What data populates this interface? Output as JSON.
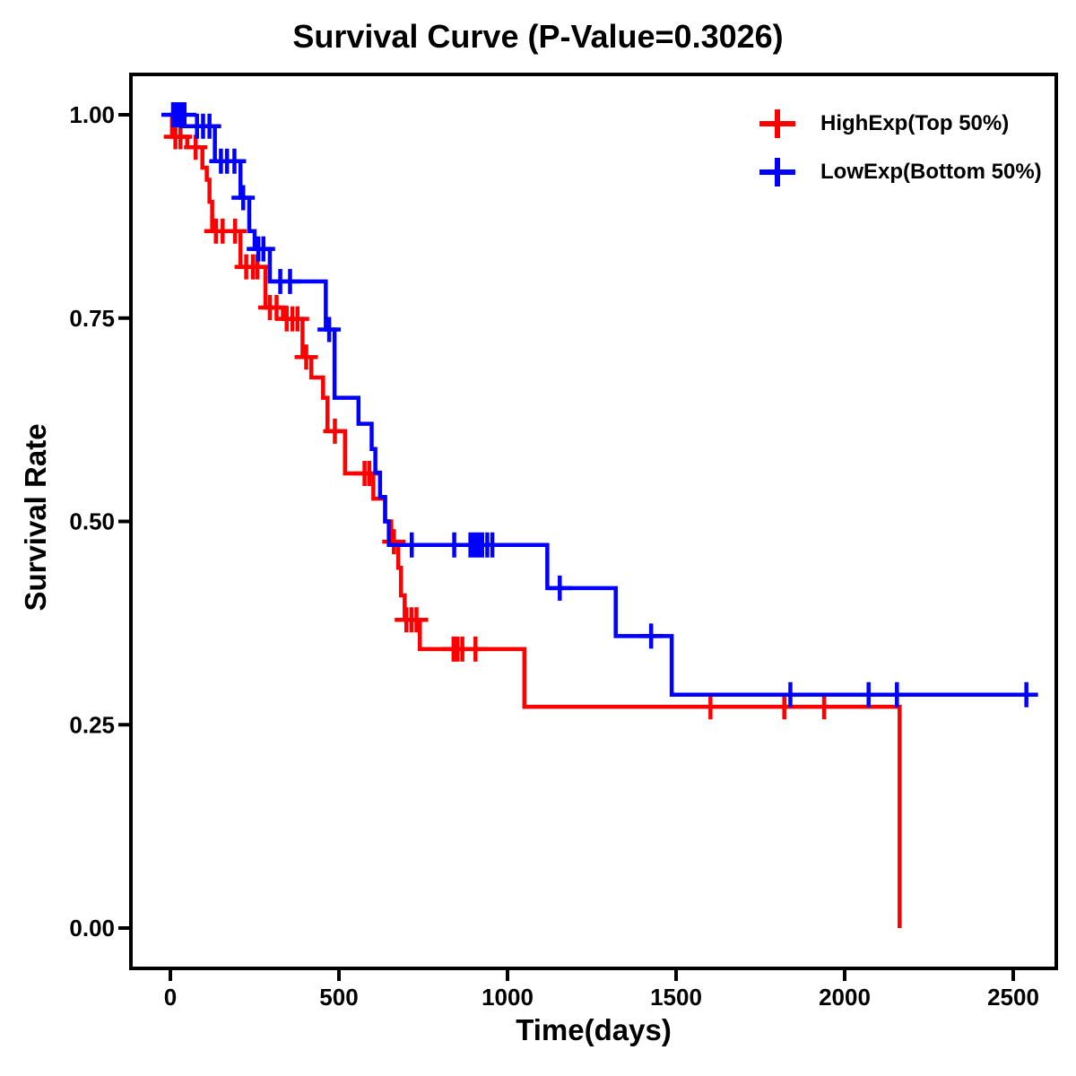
{
  "chart_data": {
    "type": "line",
    "subtype": "kaplan-meier-survival",
    "title": "Survival Curve (P-Value=0.3026)",
    "p_value": 0.3026,
    "xlabel": "Time(days)",
    "ylabel": "Survival Rate",
    "xlim": [
      -130,
      2630
    ],
    "ylim": [
      -0.05,
      1.05
    ],
    "xticks": [
      0,
      500,
      1000,
      1500,
      2000,
      2500
    ],
    "yticks": [
      0,
      0.25,
      0.5,
      0.75,
      1.0
    ],
    "ytick_labels": [
      "0.00",
      "0.25",
      "0.50",
      "0.75",
      "1.00"
    ],
    "grid": false,
    "legend_position": "top-right",
    "axis_color": "#000000",
    "censor_marker": "plus",
    "series": [
      {
        "name": "HighExp(Top 50%)",
        "color": "#FF0000",
        "end_time": 2163,
        "steps": [
          [
            0,
            1.0
          ],
          [
            5,
            0.973
          ],
          [
            50,
            0.96
          ],
          [
            95,
            0.935
          ],
          [
            108,
            0.92
          ],
          [
            116,
            0.893
          ],
          [
            124,
            0.857
          ],
          [
            208,
            0.813
          ],
          [
            282,
            0.763
          ],
          [
            334,
            0.749
          ],
          [
            392,
            0.702
          ],
          [
            418,
            0.677
          ],
          [
            453,
            0.652
          ],
          [
            466,
            0.611
          ],
          [
            518,
            0.559
          ],
          [
            602,
            0.528
          ],
          [
            637,
            0.5
          ],
          [
            655,
            0.475
          ],
          [
            676,
            0.443
          ],
          [
            684,
            0.409
          ],
          [
            695,
            0.379
          ],
          [
            740,
            0.343
          ],
          [
            1050,
            0.272
          ],
          [
            2163,
            0.0
          ]
        ],
        "censors": [
          [
            15,
            0.973
          ],
          [
            30,
            0.973
          ],
          [
            75,
            0.96
          ],
          [
            135,
            0.857
          ],
          [
            155,
            0.857
          ],
          [
            192,
            0.857
          ],
          [
            225,
            0.813
          ],
          [
            245,
            0.813
          ],
          [
            258,
            0.813
          ],
          [
            295,
            0.763
          ],
          [
            315,
            0.763
          ],
          [
            345,
            0.749
          ],
          [
            362,
            0.749
          ],
          [
            377,
            0.749
          ],
          [
            403,
            0.702
          ],
          [
            488,
            0.611
          ],
          [
            576,
            0.559
          ],
          [
            590,
            0.559
          ],
          [
            663,
            0.475
          ],
          [
            700,
            0.379
          ],
          [
            715,
            0.379
          ],
          [
            730,
            0.379
          ],
          [
            840,
            0.343
          ],
          [
            852,
            0.343
          ],
          [
            866,
            0.343
          ],
          [
            905,
            0.343
          ],
          [
            1602,
            0.272
          ],
          [
            1821,
            0.272
          ],
          [
            1939,
            0.272
          ]
        ]
      },
      {
        "name": "LowExp(Bottom 50%)",
        "color": "#0000FF",
        "end_time": 2570,
        "steps": [
          [
            0,
            1.0
          ],
          [
            32,
            0.986
          ],
          [
            132,
            0.943
          ],
          [
            208,
            0.898
          ],
          [
            234,
            0.857
          ],
          [
            250,
            0.835
          ],
          [
            295,
            0.795
          ],
          [
            461,
            0.736
          ],
          [
            487,
            0.652
          ],
          [
            558,
            0.62
          ],
          [
            597,
            0.589
          ],
          [
            608,
            0.56
          ],
          [
            622,
            0.53
          ],
          [
            637,
            0.5
          ],
          [
            648,
            0.471
          ],
          [
            1118,
            0.418
          ],
          [
            1321,
            0.359
          ],
          [
            1487,
            0.287
          ]
        ],
        "censors": [
          [
            8,
            1.0
          ],
          [
            18,
            1.0
          ],
          [
            30,
            1.0
          ],
          [
            42,
            1.0
          ],
          [
            79,
            0.986
          ],
          [
            97,
            0.986
          ],
          [
            116,
            0.986
          ],
          [
            150,
            0.943
          ],
          [
            168,
            0.943
          ],
          [
            190,
            0.943
          ],
          [
            216,
            0.898
          ],
          [
            261,
            0.835
          ],
          [
            276,
            0.835
          ],
          [
            326,
            0.795
          ],
          [
            355,
            0.795
          ],
          [
            471,
            0.736
          ],
          [
            716,
            0.471
          ],
          [
            842,
            0.471
          ],
          [
            890,
            0.471
          ],
          [
            902,
            0.471
          ],
          [
            913,
            0.471
          ],
          [
            925,
            0.471
          ],
          [
            940,
            0.471
          ],
          [
            955,
            0.471
          ],
          [
            1155,
            0.418
          ],
          [
            1426,
            0.359
          ],
          [
            1839,
            0.287
          ],
          [
            2071,
            0.287
          ],
          [
            2155,
            0.287
          ],
          [
            2539,
            0.287
          ]
        ]
      }
    ]
  }
}
